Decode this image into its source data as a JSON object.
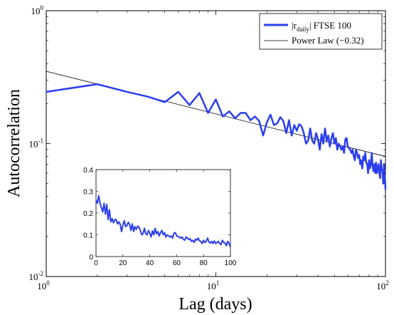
{
  "chart_data": [
    {
      "type": "line",
      "xscale": "log",
      "yscale": "log",
      "xlabel": "Lag (days)",
      "ylabel": "Autocorrelation",
      "xlim": [
        1,
        100
      ],
      "ylim": [
        0.01,
        1
      ],
      "x_ticks": [
        {
          "value": 1,
          "base": "10",
          "exp": "0"
        },
        {
          "value": 10,
          "base": "10",
          "exp": "1"
        },
        {
          "value": 100,
          "base": "10",
          "exp": "2"
        }
      ],
      "y_ticks": [
        {
          "value": 0.01,
          "base": "10",
          "exp": "-2"
        },
        {
          "value": 0.1,
          "base": "10",
          "exp": "-1"
        },
        {
          "value": 1,
          "base": "10",
          "exp": "0"
        }
      ],
      "legend_position": "top-right",
      "series": [
        {
          "name": "|r_daily| FTSE 100",
          "label_main": "|r",
          "label_sub": "daily",
          "label_rest": "| FTSE 100",
          "color": "#2b3ef0",
          "x": [
            1,
            2,
            3,
            4,
            5,
            6,
            7,
            8,
            9,
            10,
            11,
            12,
            13,
            14,
            15,
            16,
            17,
            18,
            19,
            20,
            21,
            22,
            23,
            24,
            25,
            26,
            27,
            28,
            29,
            30,
            31,
            32,
            33,
            34,
            35,
            36,
            37,
            38,
            39,
            40,
            41,
            42,
            43,
            44,
            45,
            46,
            47,
            48,
            49,
            50,
            51,
            52,
            53,
            54,
            55,
            56,
            57,
            58,
            59,
            60,
            61,
            62,
            63,
            64,
            65,
            66,
            67,
            68,
            69,
            70,
            71,
            72,
            73,
            74,
            75,
            76,
            77,
            78,
            79,
            80,
            81,
            82,
            83,
            84,
            85,
            86,
            87,
            88,
            89,
            90,
            91,
            92,
            93,
            94,
            95,
            96,
            97,
            98,
            99,
            100
          ],
          "y": [
            0.245,
            0.28,
            0.245,
            0.225,
            0.205,
            0.245,
            0.195,
            0.24,
            0.17,
            0.215,
            0.16,
            0.175,
            0.155,
            0.17,
            0.17,
            0.15,
            0.16,
            0.148,
            0.115,
            0.145,
            0.165,
            0.138,
            0.142,
            0.158,
            0.148,
            0.12,
            0.15,
            0.115,
            0.138,
            0.125,
            0.14,
            0.135,
            0.12,
            0.1,
            0.105,
            0.13,
            0.105,
            0.1,
            0.12,
            0.108,
            0.09,
            0.118,
            0.1,
            0.13,
            0.105,
            0.115,
            0.095,
            0.11,
            0.12,
            0.1,
            0.11,
            0.09,
            0.1,
            0.095,
            0.09,
            0.095,
            0.085,
            0.108,
            0.11,
            0.095,
            0.092,
            0.09,
            0.085,
            0.09,
            0.08,
            0.075,
            0.09,
            0.085,
            0.078,
            0.082,
            0.07,
            0.075,
            0.065,
            0.08,
            0.075,
            0.085,
            0.072,
            0.07,
            0.06,
            0.075,
            0.065,
            0.07,
            0.085,
            0.068,
            0.062,
            0.07,
            0.06,
            0.072,
            0.06,
            0.065,
            0.07,
            0.06,
            0.055,
            0.075,
            0.065,
            0.062,
            0.05,
            0.07,
            0.06,
            0.045
          ]
        },
        {
          "name": "Power Law (−0.32)",
          "color": "#000000",
          "x": [
            1,
            100
          ],
          "y": [
            0.35,
            0.08
          ]
        }
      ]
    },
    {
      "type": "line",
      "inset": true,
      "xlim": [
        0,
        100
      ],
      "ylim": [
        0,
        0.4
      ],
      "x_ticks": [
        "0",
        "20",
        "40",
        "60",
        "80",
        "100"
      ],
      "y_ticks": [
        "0",
        "0.1",
        "0.2",
        "0.3",
        "0.4"
      ],
      "series": [
        {
          "color": "#2b3ef0",
          "x": [
            0,
            1,
            2,
            3,
            4,
            5,
            6,
            7,
            8,
            9,
            10,
            11,
            12,
            13,
            14,
            15,
            16,
            17,
            18,
            19,
            20,
            21,
            22,
            23,
            24,
            25,
            26,
            27,
            28,
            29,
            30,
            31,
            32,
            33,
            34,
            35,
            36,
            37,
            38,
            39,
            40,
            41,
            42,
            43,
            44,
            45,
            46,
            47,
            48,
            49,
            50,
            51,
            52,
            53,
            54,
            55,
            56,
            57,
            58,
            59,
            60,
            61,
            62,
            63,
            64,
            65,
            66,
            67,
            68,
            69,
            70,
            71,
            72,
            73,
            74,
            75,
            76,
            77,
            78,
            79,
            80,
            81,
            82,
            83,
            84,
            85,
            86,
            87,
            88,
            89,
            90,
            91,
            92,
            93,
            94,
            95,
            96,
            97,
            98,
            99,
            100
          ],
          "y": [
            0.26,
            0.245,
            0.28,
            0.245,
            0.225,
            0.205,
            0.245,
            0.195,
            0.24,
            0.17,
            0.215,
            0.16,
            0.175,
            0.155,
            0.17,
            0.17,
            0.15,
            0.16,
            0.148,
            0.115,
            0.145,
            0.165,
            0.138,
            0.142,
            0.158,
            0.148,
            0.12,
            0.15,
            0.115,
            0.138,
            0.125,
            0.14,
            0.135,
            0.12,
            0.1,
            0.105,
            0.13,
            0.105,
            0.1,
            0.12,
            0.108,
            0.09,
            0.118,
            0.1,
            0.13,
            0.105,
            0.115,
            0.095,
            0.11,
            0.12,
            0.1,
            0.11,
            0.09,
            0.1,
            0.095,
            0.09,
            0.095,
            0.085,
            0.108,
            0.11,
            0.095,
            0.092,
            0.09,
            0.085,
            0.09,
            0.08,
            0.075,
            0.09,
            0.085,
            0.078,
            0.082,
            0.07,
            0.075,
            0.065,
            0.08,
            0.075,
            0.085,
            0.072,
            0.07,
            0.06,
            0.075,
            0.065,
            0.07,
            0.085,
            0.068,
            0.062,
            0.07,
            0.06,
            0.072,
            0.06,
            0.065,
            0.07,
            0.06,
            0.055,
            0.075,
            0.065,
            0.062,
            0.05,
            0.07,
            0.06,
            0.045
          ]
        }
      ]
    }
  ]
}
